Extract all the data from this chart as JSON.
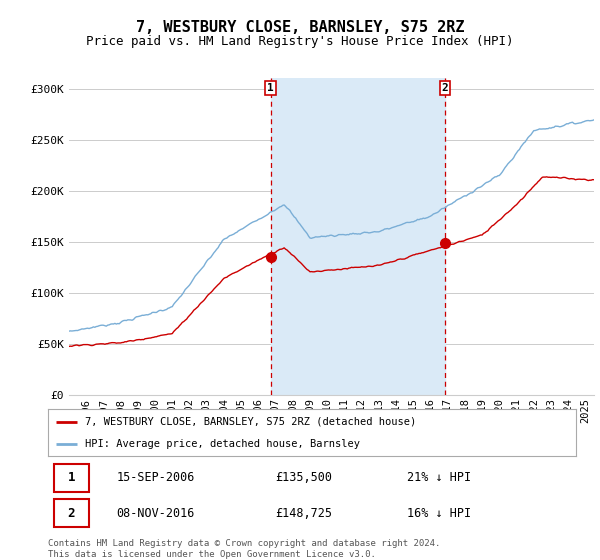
{
  "title": "7, WESTBURY CLOSE, BARNSLEY, S75 2RZ",
  "subtitle": "Price paid vs. HM Land Registry's House Price Index (HPI)",
  "ylim": [
    0,
    310000
  ],
  "yticks": [
    0,
    50000,
    100000,
    150000,
    200000,
    250000,
    300000
  ],
  "ytick_labels": [
    "£0",
    "£50K",
    "£100K",
    "£150K",
    "£200K",
    "£250K",
    "£300K"
  ],
  "xstart": 1995.0,
  "xend": 2025.5,
  "sale1_x": 2006.708,
  "sale2_x": 2016.858,
  "sale1_price": 135500,
  "sale2_price": 148725,
  "sale1_label": "15-SEP-2006",
  "sale2_label": "08-NOV-2016",
  "sale1_pct": "21% ↓ HPI",
  "sale2_pct": "16% ↓ HPI",
  "red_color": "#cc0000",
  "blue_color": "#7aaed6",
  "shade_color": "#daeaf7",
  "vline_color": "#cc0000",
  "grid_color": "#cccccc",
  "bg_color": "#ffffff",
  "title_fontsize": 11,
  "subtitle_fontsize": 9,
  "legend_label_red": "7, WESTBURY CLOSE, BARNSLEY, S75 2RZ (detached house)",
  "legend_label_blue": "HPI: Average price, detached house, Barnsley",
  "footnote": "Contains HM Land Registry data © Crown copyright and database right 2024.\nThis data is licensed under the Open Government Licence v3.0."
}
